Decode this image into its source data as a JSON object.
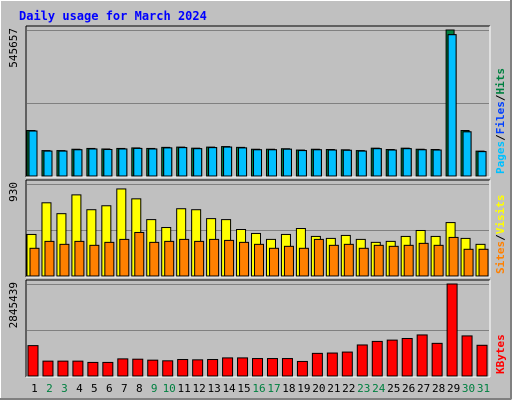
{
  "title": "Daily usage for March 2024",
  "colors": {
    "background": "#c0c0c0",
    "title": "#0000ff",
    "hits": "#008040",
    "files": "#0040ff",
    "pages": "#00c0ff",
    "visits": "#ffff00",
    "sites": "#ff8000",
    "kbytes": "#ff0000",
    "weekend_day": "#008040",
    "weekday": "#000000",
    "gridline": "#808080"
  },
  "chart_data": [
    {
      "type": "bar",
      "panel": "hits-files-pages",
      "max_label": "545657",
      "legend": [
        "Pages",
        "Files",
        "Hits"
      ],
      "ylim": [
        0,
        545657
      ],
      "categories": [
        "1",
        "2",
        "3",
        "4",
        "5",
        "6",
        "7",
        "8",
        "9",
        "10",
        "11",
        "12",
        "13",
        "14",
        "15",
        "16",
        "17",
        "18",
        "19",
        "20",
        "21",
        "22",
        "23",
        "24",
        "25",
        "26",
        "27",
        "28",
        "29",
        "30",
        "31"
      ],
      "series": [
        {
          "name": "Hits",
          "values": [
            170000,
            95000,
            95000,
            100000,
            103000,
            101000,
            103000,
            105000,
            103000,
            107000,
            108000,
            104000,
            108000,
            110000,
            107000,
            100000,
            100000,
            102000,
            97000,
            100000,
            99000,
            98000,
            95000,
            104000,
            99000,
            104000,
            100000,
            99000,
            545657,
            170000,
            93000
          ]
        },
        {
          "name": "Files",
          "values": [
            168000,
            93000,
            93000,
            98000,
            101000,
            99000,
            101000,
            103000,
            101000,
            105000,
            106000,
            102000,
            106000,
            108000,
            105000,
            98000,
            98000,
            100000,
            95000,
            98000,
            97000,
            96000,
            93000,
            102000,
            97000,
            102000,
            98000,
            97000,
            528000,
            165000,
            91000
          ]
        },
        {
          "name": "Pages",
          "values": [
            168000,
            93000,
            93000,
            98000,
            101000,
            99000,
            101000,
            103000,
            101000,
            105000,
            106000,
            102000,
            106000,
            108000,
            105000,
            98000,
            98000,
            100000,
            95000,
            98000,
            97000,
            96000,
            93000,
            102000,
            97000,
            102000,
            98000,
            97000,
            528000,
            165000,
            91000
          ]
        }
      ]
    },
    {
      "type": "bar",
      "panel": "visits-sites",
      "max_label": "930",
      "legend": [
        "Sites",
        "Visits"
      ],
      "ylim": [
        0,
        930
      ],
      "categories": [
        "1",
        "2",
        "3",
        "4",
        "5",
        "6",
        "7",
        "8",
        "9",
        "10",
        "11",
        "12",
        "13",
        "14",
        "15",
        "16",
        "17",
        "18",
        "19",
        "20",
        "21",
        "22",
        "23",
        "24",
        "25",
        "26",
        "27",
        "28",
        "29",
        "30",
        "31"
      ],
      "series": [
        {
          "name": "Visits",
          "values": [
            420,
            740,
            630,
            820,
            670,
            710,
            880,
            780,
            570,
            490,
            680,
            670,
            580,
            570,
            470,
            430,
            370,
            420,
            480,
            400,
            380,
            410,
            370,
            340,
            350,
            400,
            460,
            400,
            540,
            380,
            320
          ]
        },
        {
          "name": "Sites",
          "values": [
            280,
            350,
            320,
            350,
            310,
            340,
            370,
            440,
            340,
            350,
            370,
            350,
            370,
            360,
            340,
            320,
            280,
            300,
            280,
            370,
            310,
            320,
            280,
            310,
            300,
            310,
            330,
            310,
            390,
            270,
            270
          ]
        }
      ]
    },
    {
      "type": "bar",
      "panel": "kbytes",
      "max_label": "2845439",
      "legend": [
        "KBytes"
      ],
      "ylim": [
        0,
        2845439
      ],
      "categories": [
        "1",
        "2",
        "3",
        "4",
        "5",
        "6",
        "7",
        "8",
        "9",
        "10",
        "11",
        "12",
        "13",
        "14",
        "15",
        "16",
        "17",
        "18",
        "19",
        "20",
        "21",
        "22",
        "23",
        "24",
        "25",
        "26",
        "27",
        "28",
        "29",
        "30",
        "31"
      ],
      "series": [
        {
          "name": "KBytes",
          "values": [
            940000,
            460000,
            460000,
            460000,
            420000,
            420000,
            530000,
            520000,
            490000,
            470000,
            510000,
            500000,
            510000,
            560000,
            560000,
            540000,
            540000,
            540000,
            450000,
            700000,
            710000,
            740000,
            960000,
            1070000,
            1110000,
            1160000,
            1270000,
            1010000,
            2845439,
            1240000,
            950000
          ]
        }
      ]
    }
  ],
  "x_axis": {
    "days": [
      "1",
      "2",
      "3",
      "4",
      "5",
      "6",
      "7",
      "8",
      "9",
      "10",
      "11",
      "12",
      "13",
      "14",
      "15",
      "16",
      "17",
      "18",
      "19",
      "20",
      "21",
      "22",
      "23",
      "24",
      "25",
      "26",
      "27",
      "28",
      "29",
      "30",
      "31"
    ],
    "weekend_days": [
      2,
      3,
      9,
      10,
      16,
      17,
      23,
      24,
      30,
      31
    ]
  }
}
